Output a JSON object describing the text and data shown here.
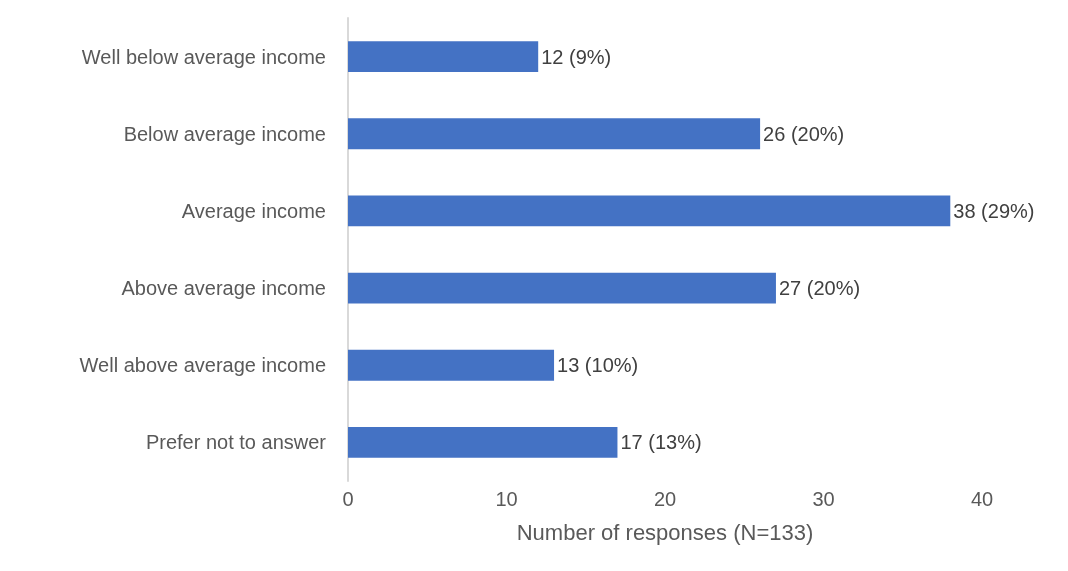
{
  "chart_data": {
    "type": "bar",
    "orientation": "horizontal",
    "xlabel": "Number of responses (N=133)",
    "categories": [
      "Well below average income",
      "Below average income",
      "Average income",
      "Above average income",
      "Well above average income",
      "Prefer not to answer"
    ],
    "values": [
      12,
      26,
      38,
      27,
      13,
      17
    ],
    "value_labels": [
      "12 (9%)",
      "26 (20%)",
      "38 (29%)",
      "27 (20%)",
      "13 (10%)",
      "17 (13%)"
    ],
    "color": "#4472c4",
    "xlim": [
      0,
      40
    ],
    "xticks": [
      0,
      10,
      20,
      30,
      40
    ],
    "grid": false
  }
}
